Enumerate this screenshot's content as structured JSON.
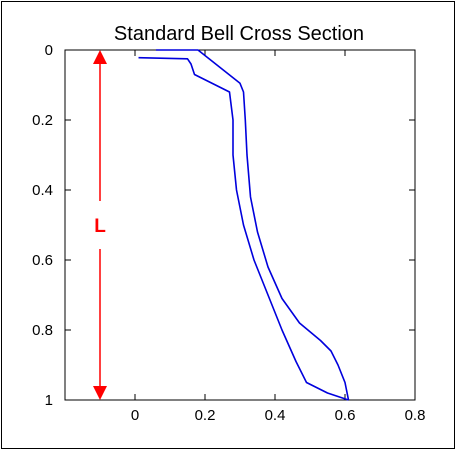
{
  "chart_data": {
    "type": "line",
    "title": "Standard Bell Cross Section",
    "xlabel": "",
    "ylabel": "",
    "xlim": [
      -0.2,
      0.8
    ],
    "ylim": [
      0,
      1
    ],
    "y_inverted": true,
    "x_ticks": [
      "0",
      "0.2",
      "0.4",
      "0.6",
      "0.8"
    ],
    "y_ticks": [
      "0",
      "0.2",
      "0.4",
      "0.6",
      "0.8",
      "1"
    ],
    "grid": false,
    "legend": "none",
    "series": [
      {
        "x": [
          0.06,
          0.18,
          0.3,
          0.31,
          0.315,
          0.32,
          0.33,
          0.35,
          0.38,
          0.42,
          0.47,
          0.53,
          0.56,
          0.58,
          0.6,
          0.61
        ],
        "y": [
          0.0,
          0.0,
          0.095,
          0.12,
          0.2,
          0.3,
          0.42,
          0.52,
          0.62,
          0.71,
          0.78,
          0.83,
          0.86,
          0.9,
          0.95,
          1.0
        ]
      },
      {
        "x": [
          0.01,
          0.15,
          0.16,
          0.17,
          0.27,
          0.28,
          0.28,
          0.29,
          0.31,
          0.34,
          0.38,
          0.42,
          0.46,
          0.49,
          0.55,
          0.61
        ],
        "y": [
          0.022,
          0.025,
          0.04,
          0.07,
          0.12,
          0.2,
          0.3,
          0.4,
          0.5,
          0.6,
          0.7,
          0.8,
          0.89,
          0.95,
          0.98,
          1.0
        ]
      }
    ],
    "line_color": "#0000dd",
    "annotation": {
      "label": "L",
      "color": "#ff0000",
      "x": -0.1,
      "y_from": 0,
      "y_to": 1
    }
  }
}
